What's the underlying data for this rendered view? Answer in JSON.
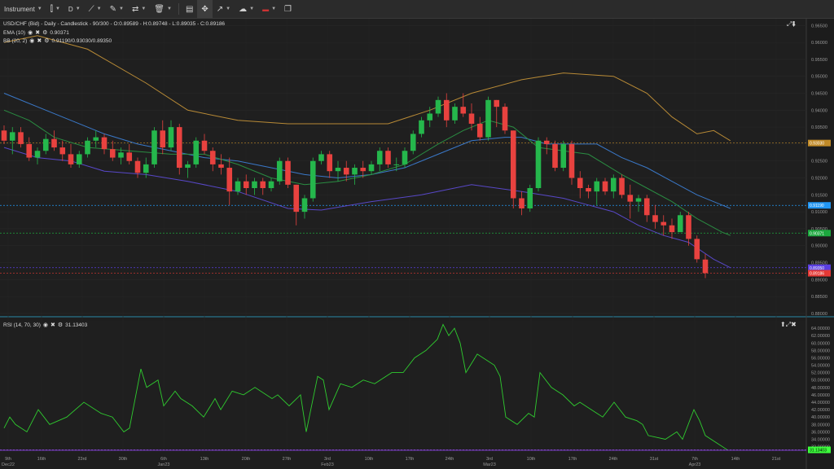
{
  "toolbar": {
    "instrument_label": "Instrument",
    "timeframe_label": "D",
    "icons": [
      "chart-type-icon",
      "draw-line-icon",
      "pencil-icon",
      "indicators-icon",
      "trash-icon",
      "layout-icon",
      "fullscreen-icon",
      "arrow-icon",
      "weather-icon",
      "uk-flag-icon",
      "window-icon"
    ]
  },
  "legends": {
    "symbol_line": "USD/CHF (Bid) - Daily - Candlestick - 90/300 - O:0.89589 - H:0.89748 - L:0.89035 - C:0.89186",
    "ema_label": "EMA (10)",
    "ema_value": "0.90371",
    "bb_label": "BB (20, 2)",
    "bb_value": "0.91190/0.93030/0.89350",
    "rsi_label": "RSI (14, 70, 30)",
    "rsi_value": "31.13403"
  },
  "colors": {
    "up": "#25b74c",
    "down": "#e8423f",
    "bb_upper": "#b88a36",
    "bb_lower": "#5848c8",
    "ema": "#2a8c42",
    "mid": "#3a78c8",
    "rsi": "#2fcc2f",
    "bg": "#1e1e1e"
  },
  "chart_data": [
    {
      "type": "candlestick",
      "title": "USD/CHF (Bid) - Daily - Candlestick",
      "ylim": [
        0.8795,
        0.967
      ],
      "y_ticks": [
        "0.96500",
        "0.96000",
        "0.95500",
        "0.95000",
        "0.94500",
        "0.94000",
        "0.93500",
        "0.93000",
        "0.92500",
        "0.92000",
        "0.91500",
        "0.91000",
        "0.90500",
        "0.90000",
        "0.89500",
        "0.89000",
        "0.88500",
        "0.88000"
      ],
      "x_ticks": [
        [
          "9th",
          "Dec22"
        ],
        [
          "16th",
          ""
        ],
        [
          "23rd",
          ""
        ],
        [
          "30th",
          ""
        ],
        [
          "6th",
          "Jan23"
        ],
        [
          "13th",
          ""
        ],
        [
          "20th",
          ""
        ],
        [
          "27th",
          ""
        ],
        [
          "3rd",
          "Feb23"
        ],
        [
          "10th",
          ""
        ],
        [
          "17th",
          ""
        ],
        [
          "24th",
          ""
        ],
        [
          "3rd",
          "Mar23"
        ],
        [
          "10th",
          ""
        ],
        [
          "17th",
          ""
        ],
        [
          "24th",
          ""
        ],
        [
          "31st",
          ""
        ],
        [
          "7th",
          "Apr23"
        ],
        [
          "14th",
          ""
        ],
        [
          "21st",
          ""
        ],
        [
          "28th",
          ""
        ]
      ],
      "candles": [
        [
          0.934,
          0.9355,
          0.93,
          0.931
        ],
        [
          0.931,
          0.935,
          0.927,
          0.9335
        ],
        [
          0.9335,
          0.935,
          0.929,
          0.93
        ],
        [
          0.93,
          0.932,
          0.925,
          0.926
        ],
        [
          0.926,
          0.929,
          0.924,
          0.928
        ],
        [
          0.928,
          0.933,
          0.927,
          0.9315
        ],
        [
          0.9315,
          0.934,
          0.928,
          0.929
        ],
        [
          0.929,
          0.931,
          0.925,
          0.927
        ],
        [
          0.927,
          0.93,
          0.923,
          0.924
        ],
        [
          0.924,
          0.928,
          0.923,
          0.927
        ],
        [
          0.927,
          0.932,
          0.926,
          0.931
        ],
        [
          0.931,
          0.934,
          0.929,
          0.932
        ],
        [
          0.932,
          0.933,
          0.927,
          0.9285
        ],
        [
          0.9285,
          0.931,
          0.925,
          0.926
        ],
        [
          0.926,
          0.929,
          0.924,
          0.9275
        ],
        [
          0.9275,
          0.93,
          0.924,
          0.925
        ],
        [
          0.925,
          0.926,
          0.92,
          0.9215
        ],
        [
          0.9215,
          0.926,
          0.92,
          0.924
        ],
        [
          0.924,
          0.935,
          0.923,
          0.934
        ],
        [
          0.934,
          0.937,
          0.927,
          0.929
        ],
        [
          0.929,
          0.937,
          0.928,
          0.935
        ],
        [
          0.935,
          0.936,
          0.921,
          0.923
        ],
        [
          0.923,
          0.925,
          0.92,
          0.924
        ],
        [
          0.924,
          0.932,
          0.923,
          0.931
        ],
        [
          0.931,
          0.933,
          0.927,
          0.928
        ],
        [
          0.928,
          0.929,
          0.922,
          0.924
        ],
        [
          0.924,
          0.927,
          0.921,
          0.923
        ],
        [
          0.923,
          0.926,
          0.912,
          0.916
        ],
        [
          0.916,
          0.92,
          0.915,
          0.919
        ],
        [
          0.919,
          0.921,
          0.915,
          0.917
        ],
        [
          0.917,
          0.92,
          0.915,
          0.919
        ],
        [
          0.919,
          0.92,
          0.915,
          0.917
        ],
        [
          0.917,
          0.92,
          0.916,
          0.919
        ],
        [
          0.919,
          0.926,
          0.918,
          0.925
        ],
        [
          0.925,
          0.926,
          0.917,
          0.918
        ],
        [
          0.918,
          0.918,
          0.906,
          0.91
        ],
        [
          0.91,
          0.915,
          0.908,
          0.914
        ],
        [
          0.914,
          0.926,
          0.913,
          0.925
        ],
        [
          0.925,
          0.928,
          0.924,
          0.927
        ],
        [
          0.927,
          0.928,
          0.92,
          0.922
        ],
        [
          0.922,
          0.925,
          0.919,
          0.923
        ],
        [
          0.923,
          0.925,
          0.919,
          0.921
        ],
        [
          0.921,
          0.924,
          0.918,
          0.923
        ],
        [
          0.923,
          0.925,
          0.92,
          0.922
        ],
        [
          0.922,
          0.925,
          0.921,
          0.924
        ],
        [
          0.924,
          0.929,
          0.922,
          0.928
        ],
        [
          0.928,
          0.929,
          0.923,
          0.924
        ],
        [
          0.924,
          0.926,
          0.922,
          0.924
        ],
        [
          0.924,
          0.929,
          0.923,
          0.928
        ],
        [
          0.928,
          0.934,
          0.927,
          0.933
        ],
        [
          0.933,
          0.938,
          0.932,
          0.937
        ],
        [
          0.937,
          0.941,
          0.935,
          0.939
        ],
        [
          0.939,
          0.944,
          0.938,
          0.943
        ],
        [
          0.943,
          0.945,
          0.935,
          0.937
        ],
        [
          0.937,
          0.942,
          0.936,
          0.941
        ],
        [
          0.941,
          0.945,
          0.938,
          0.939
        ],
        [
          0.939,
          0.942,
          0.934,
          0.936
        ],
        [
          0.936,
          0.938,
          0.931,
          0.932
        ],
        [
          0.932,
          0.944,
          0.931,
          0.943
        ],
        [
          0.943,
          0.943,
          0.935,
          0.941
        ],
        [
          0.941,
          0.942,
          0.933,
          0.934
        ],
        [
          0.934,
          0.934,
          0.911,
          0.914
        ],
        [
          0.914,
          0.916,
          0.909,
          0.911
        ],
        [
          0.911,
          0.918,
          0.91,
          0.917
        ],
        [
          0.917,
          0.932,
          0.916,
          0.931
        ],
        [
          0.931,
          0.932,
          0.927,
          0.93
        ],
        [
          0.93,
          0.931,
          0.922,
          0.923
        ],
        [
          0.923,
          0.931,
          0.922,
          0.93
        ],
        [
          0.93,
          0.931,
          0.918,
          0.92
        ],
        [
          0.92,
          0.922,
          0.914,
          0.917
        ],
        [
          0.917,
          0.918,
          0.914,
          0.916
        ],
        [
          0.916,
          0.92,
          0.912,
          0.919
        ],
        [
          0.919,
          0.92,
          0.915,
          0.916
        ],
        [
          0.916,
          0.921,
          0.914,
          0.92
        ],
        [
          0.92,
          0.921,
          0.914,
          0.915
        ],
        [
          0.915,
          0.918,
          0.908,
          0.913
        ],
        [
          0.913,
          0.915,
          0.91,
          0.914
        ],
        [
          0.914,
          0.915,
          0.907,
          0.909
        ],
        [
          0.909,
          0.912,
          0.905,
          0.907
        ],
        [
          0.907,
          0.909,
          0.903,
          0.906
        ],
        [
          0.906,
          0.908,
          0.902,
          0.904
        ],
        [
          0.904,
          0.91,
          0.904,
          0.909
        ],
        [
          0.909,
          0.91,
          0.9,
          0.902
        ],
        [
          0.902,
          0.903,
          0.895,
          0.896
        ],
        [
          0.8959,
          0.8975,
          0.8904,
          0.8919
        ]
      ],
      "bb_upper": [
        [
          0,
          0.96
        ],
        [
          4,
          0.962
        ],
        [
          10,
          0.958
        ],
        [
          17,
          0.948
        ],
        [
          22,
          0.94
        ],
        [
          28,
          0.937
        ],
        [
          34,
          0.936
        ],
        [
          40,
          0.936
        ],
        [
          46,
          0.936
        ],
        [
          51,
          0.94
        ],
        [
          56,
          0.945
        ],
        [
          62,
          0.949
        ],
        [
          67,
          0.951
        ],
        [
          73,
          0.95
        ],
        [
          77,
          0.945
        ],
        [
          80,
          0.938
        ],
        [
          83,
          0.933
        ],
        [
          85,
          0.934
        ],
        [
          87,
          0.931
        ]
      ],
      "bb_lower": [
        [
          0,
          0.929
        ],
        [
          4,
          0.926
        ],
        [
          8,
          0.925
        ],
        [
          12,
          0.922
        ],
        [
          17,
          0.921
        ],
        [
          22,
          0.919
        ],
        [
          28,
          0.916
        ],
        [
          34,
          0.911
        ],
        [
          38,
          0.9105
        ],
        [
          44,
          0.913
        ],
        [
          50,
          0.915
        ],
        [
          56,
          0.918
        ],
        [
          62,
          0.916
        ],
        [
          67,
          0.914
        ],
        [
          70,
          0.912
        ],
        [
          73,
          0.91
        ],
        [
          76,
          0.906
        ],
        [
          79,
          0.903
        ],
        [
          82,
          0.901
        ],
        [
          85,
          0.896
        ],
        [
          87,
          0.8935
        ]
      ],
      "ema": [
        [
          0,
          0.94
        ],
        [
          3,
          0.937
        ],
        [
          6,
          0.932
        ],
        [
          10,
          0.929
        ],
        [
          15,
          0.928
        ],
        [
          20,
          0.927
        ],
        [
          24,
          0.927
        ],
        [
          28,
          0.924
        ],
        [
          32,
          0.92
        ],
        [
          36,
          0.918
        ],
        [
          40,
          0.919
        ],
        [
          44,
          0.921
        ],
        [
          48,
          0.924
        ],
        [
          52,
          0.93
        ],
        [
          55,
          0.934
        ],
        [
          58,
          0.937
        ],
        [
          61,
          0.935
        ],
        [
          64,
          0.929
        ],
        [
          67,
          0.928
        ],
        [
          70,
          0.927
        ],
        [
          74,
          0.921
        ],
        [
          77,
          0.917
        ],
        [
          80,
          0.913
        ],
        [
          83,
          0.908
        ],
        [
          86,
          0.904
        ],
        [
          87,
          0.903
        ]
      ],
      "mid": [
        [
          0,
          0.945
        ],
        [
          4,
          0.941
        ],
        [
          8,
          0.937
        ],
        [
          12,
          0.933
        ],
        [
          16,
          0.93
        ],
        [
          20,
          0.928
        ],
        [
          24,
          0.926
        ],
        [
          28,
          0.925
        ],
        [
          32,
          0.923
        ],
        [
          36,
          0.921
        ],
        [
          40,
          0.92
        ],
        [
          44,
          0.921
        ],
        [
          48,
          0.923
        ],
        [
          52,
          0.927
        ],
        [
          56,
          0.931
        ],
        [
          60,
          0.932
        ],
        [
          62,
          0.932
        ],
        [
          65,
          0.93
        ],
        [
          68,
          0.93
        ],
        [
          71,
          0.93
        ],
        [
          74,
          0.926
        ],
        [
          77,
          0.923
        ],
        [
          80,
          0.919
        ],
        [
          83,
          0.915
        ],
        [
          87,
          0.911
        ]
      ],
      "hlines": [
        {
          "y": 0.9303,
          "label": "0.93030",
          "color": "#c08a28"
        },
        {
          "y": 0.9119,
          "label": "0.91190",
          "color": "#2196f3"
        },
        {
          "y": 0.90371,
          "label": "0.90371",
          "color": "#1ca83e"
        },
        {
          "y": 0.8935,
          "label": "0.89350",
          "color": "#5a3fe0"
        },
        {
          "y": 0.89186,
          "label": "0.89186",
          "color": "#e53935"
        }
      ]
    },
    {
      "type": "line",
      "title": "RSI (14, 70, 30)",
      "ylim": [
        30.8,
        66.0
      ],
      "y_ticks": [
        "64.00000",
        "62.00000",
        "60.00000",
        "58.00000",
        "56.00000",
        "54.00000",
        "52.00000",
        "50.00000",
        "48.00000",
        "46.00000",
        "44.00000",
        "42.00000",
        "40.00000",
        "38.00000",
        "36.00000",
        "34.00000",
        "32.00000"
      ],
      "values": [
        [
          0,
          37
        ],
        [
          1,
          40
        ],
        [
          2,
          38
        ],
        [
          4,
          36
        ],
        [
          6,
          42
        ],
        [
          8,
          38
        ],
        [
          11,
          40
        ],
        [
          14,
          44
        ],
        [
          17,
          41
        ],
        [
          19,
          40
        ],
        [
          21,
          36
        ],
        [
          22,
          37
        ],
        [
          24,
          53
        ],
        [
          25,
          48
        ],
        [
          27,
          50
        ],
        [
          28,
          43
        ],
        [
          30,
          47
        ],
        [
          31,
          45
        ],
        [
          33,
          43
        ],
        [
          35,
          40
        ],
        [
          37,
          45
        ],
        [
          38,
          42
        ],
        [
          40,
          47
        ],
        [
          42,
          46
        ],
        [
          44,
          48
        ],
        [
          47,
          45
        ],
        [
          48,
          46
        ],
        [
          50,
          43
        ],
        [
          52,
          46
        ],
        [
          53,
          36
        ],
        [
          55,
          51
        ],
        [
          56,
          50
        ],
        [
          57,
          42
        ],
        [
          59,
          49
        ],
        [
          61,
          48
        ],
        [
          63,
          50
        ],
        [
          65,
          49
        ],
        [
          68,
          52
        ],
        [
          70,
          52
        ],
        [
          72,
          56
        ],
        [
          74,
          58
        ],
        [
          76,
          61
        ],
        [
          77,
          65
        ],
        [
          78,
          62
        ],
        [
          79,
          64
        ],
        [
          80,
          60
        ],
        [
          81,
          52
        ],
        [
          83,
          57
        ],
        [
          86,
          54
        ],
        [
          87,
          51
        ],
        [
          88,
          40
        ],
        [
          90,
          38
        ],
        [
          92,
          41
        ],
        [
          93,
          40
        ],
        [
          94,
          52
        ],
        [
          96,
          48
        ],
        [
          98,
          46
        ],
        [
          100,
          43
        ],
        [
          101,
          44
        ],
        [
          103,
          42
        ],
        [
          105,
          40
        ],
        [
          106,
          42
        ],
        [
          107,
          44
        ],
        [
          108,
          42
        ],
        [
          109,
          40
        ],
        [
          111,
          39
        ],
        [
          112,
          38
        ],
        [
          113,
          35
        ],
        [
          116,
          34
        ],
        [
          118,
          36
        ],
        [
          119,
          34
        ],
        [
          121,
          42
        ],
        [
          122,
          39
        ],
        [
          123,
          35
        ],
        [
          125,
          33
        ],
        [
          127,
          31
        ]
      ],
      "hline": {
        "y": 31.13403,
        "label": "31.13403",
        "color": "#3cff3c"
      }
    }
  ]
}
